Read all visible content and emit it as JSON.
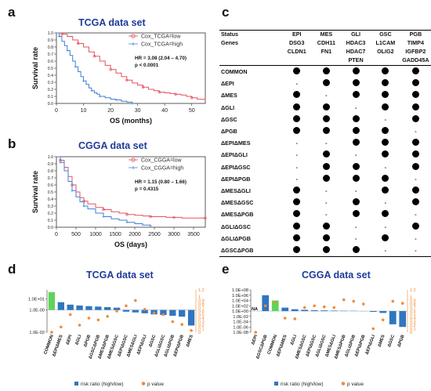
{
  "panels": {
    "a": {
      "letter": "a",
      "title": "TCGA data set"
    },
    "b": {
      "letter": "b",
      "title": "CGGA data set"
    },
    "c": {
      "letter": "c"
    },
    "d": {
      "letter": "d",
      "title": "TCGA data set"
    },
    "e": {
      "letter": "e",
      "title": "CGGA data set"
    }
  },
  "colors": {
    "low": "#e8505b",
    "high": "#3c7fd6",
    "bar": "#2f76c0",
    "common_bar": "#5fd35a",
    "pvalue": "#f08a3a",
    "title": "#1f3b99"
  },
  "km_a": {
    "ylabel": "Survival rate",
    "xlabel": "OS (months)",
    "legend_low": "Cox_TCGA=low",
    "legend_high": "Cox_TCGA=high",
    "hr_text": "HR = 3.08 (2.04 – 4.70)",
    "p_text": "p < 0.0001",
    "yticks": [
      "0.0",
      "0.1",
      "0.2",
      "0.3",
      "0.4",
      "0.5",
      "0.6",
      "0.7",
      "0.8",
      "0.9",
      "1.0"
    ],
    "xticks": [
      "0",
      "10",
      "20",
      "30",
      "40",
      "50"
    ]
  },
  "km_b": {
    "ylabel": "Survival rate",
    "xlabel": "OS (days)",
    "legend_low": "Cox_CGGA=low",
    "legend_high": "Cox_CGGA=high",
    "hr_text": "HR = 1.15 (0.80 – 1.66)",
    "p_text": "p = 0.4315",
    "yticks": [
      "0.0",
      "0.1",
      "0.2",
      "0.3",
      "0.4",
      "0.5",
      "0.6",
      "0.7",
      "0.8",
      "0.9",
      "1.0"
    ],
    "xticks": [
      "0",
      "500",
      "1000",
      "1500",
      "2000",
      "2500",
      "3000",
      "3500"
    ]
  },
  "chart_data": [
    {
      "type": "line",
      "panel": "a",
      "title": "TCGA data set",
      "xlabel": "OS (months)",
      "ylabel": "Survival rate",
      "xlim": [
        0,
        55
      ],
      "ylim": [
        0,
        1
      ],
      "series": [
        {
          "name": "Cox_TCGA=low",
          "x": [
            0,
            2,
            4,
            6,
            8,
            10,
            12,
            14,
            16,
            18,
            20,
            22,
            24,
            26,
            28,
            30,
            32,
            34,
            36,
            38,
            40,
            42,
            44,
            46,
            48,
            50,
            52,
            55
          ],
          "y": [
            1.0,
            0.98,
            0.95,
            0.9,
            0.85,
            0.8,
            0.73,
            0.67,
            0.6,
            0.54,
            0.48,
            0.43,
            0.38,
            0.33,
            0.29,
            0.26,
            0.23,
            0.2,
            0.18,
            0.16,
            0.15,
            0.14,
            0.13,
            0.12,
            0.1,
            0.08,
            0.06,
            0.05
          ]
        },
        {
          "name": "Cox_TCGA=high",
          "x": [
            0,
            1,
            2,
            3,
            4,
            5,
            6,
            7,
            8,
            9,
            10,
            11,
            12,
            13,
            14,
            15,
            16,
            18,
            20,
            22,
            24,
            26,
            28
          ],
          "y": [
            1.0,
            0.95,
            0.88,
            0.82,
            0.75,
            0.68,
            0.6,
            0.52,
            0.45,
            0.38,
            0.32,
            0.27,
            0.22,
            0.18,
            0.15,
            0.13,
            0.1,
            0.08,
            0.06,
            0.05,
            0.03,
            0.02,
            0.0
          ]
        }
      ],
      "annotations": [
        "HR = 3.08 (2.04 – 4.70)",
        "p < 0.0001"
      ]
    },
    {
      "type": "line",
      "panel": "b",
      "title": "CGGA data set",
      "xlabel": "OS (days)",
      "ylabel": "Survival rate",
      "xlim": [
        0,
        3800
      ],
      "ylim": [
        0,
        1
      ],
      "series": [
        {
          "name": "Cox_CGGA=low",
          "x": [
            0,
            100,
            200,
            300,
            400,
            500,
            600,
            700,
            800,
            1000,
            1200,
            1400,
            1600,
            1800,
            2000,
            2200,
            2400,
            2600,
            2800,
            3000,
            3200,
            3500,
            3800
          ],
          "y": [
            1.0,
            0.95,
            0.85,
            0.72,
            0.6,
            0.5,
            0.42,
            0.37,
            0.33,
            0.28,
            0.25,
            0.22,
            0.2,
            0.18,
            0.17,
            0.16,
            0.15,
            0.15,
            0.14,
            0.14,
            0.13,
            0.13,
            0.13
          ]
        },
        {
          "name": "Cox_CGGA=high",
          "x": [
            0,
            100,
            200,
            300,
            400,
            500,
            600,
            700,
            800,
            1000,
            1200,
            1400,
            1600,
            1800,
            2000,
            2200,
            2400
          ],
          "y": [
            1.0,
            0.92,
            0.8,
            0.65,
            0.52,
            0.43,
            0.36,
            0.3,
            0.26,
            0.2,
            0.15,
            0.12,
            0.1,
            0.07,
            0.05,
            0.03,
            0.02
          ]
        }
      ],
      "annotations": [
        "HR = 1.15 (0.80 – 1.66)",
        "p = 0.4315"
      ]
    },
    {
      "type": "bar",
      "panel": "d",
      "title": "TCGA data set",
      "categories": [
        "COMMON",
        "ΔEPIΔMES",
        "ΔEPI",
        "ΔGLI",
        "ΔPGB",
        "ΔGSCΔPGB",
        "ΔMESΔPGB",
        "ΔMESΔGSC",
        "ΔEPIΔGSC",
        "ΔMESΔGLI",
        "ΔEPIΔGLI",
        "ΔGSC",
        "ΔGLIΔGSC",
        "ΔGLIΔPGB",
        "ΔEPIΔPGB",
        "ΔMES"
      ],
      "y_axis_left_ticks": [
        "1.0E-02",
        "1.0E-00",
        "1.0E+01"
      ],
      "y_axis_right_ticks": [
        "0",
        "0.1",
        "0.2",
        "0.3",
        "0.4",
        "0.5",
        "0.6",
        "0.7",
        "0.8",
        "0.9",
        "1",
        "1.2"
      ],
      "series": [
        {
          "name": "risk ratio (high/low)",
          "values": [
            40,
            5,
            3,
            2.5,
            2.2,
            2,
            1.8,
            1.6,
            0.7,
            0.6,
            0.5,
            0.4,
            0.35,
            0.3,
            0.25,
            0.04
          ]
        },
        {
          "name": "p value",
          "values": [
            0.0,
            0.15,
            0.5,
            0.2,
            0.4,
            0.35,
            0.45,
            0.6,
            0.75,
            0.9,
            0.65,
            0.55,
            0.5,
            0.3,
            0.22,
            0.05
          ]
        }
      ],
      "legend": [
        "risk ratio (high/low)",
        "p value"
      ]
    },
    {
      "type": "bar",
      "panel": "e",
      "title": "CGGA data set",
      "categories": [
        "ΔEPI",
        "ΔGSCΔPGB",
        "COMMON",
        "ΔEPIΔMES",
        "ΔGLI",
        "ΔMESΔGSC",
        "ΔEPIΔGSC",
        "ΔGLIΔGSC",
        "ΔMESΔGLI",
        "ΔMESΔPGB",
        "ΔGLIΔPGB",
        "ΔEPIΔPGB",
        "ΔEPIΔGLI",
        "ΔMES",
        "ΔGSC",
        "ΔPGB"
      ],
      "y_axis_left_ticks": [
        "1.0E-08",
        "1.0E-06",
        "1.0E-04",
        "1.0E-02",
        "1.0E+00",
        "1.0E+02",
        "1.0E+04",
        "1.0E+06",
        "1.0E+08"
      ],
      "y_axis_right_ticks": [
        "0",
        "0.1",
        "0.2",
        "0.3",
        "0.4",
        "0.5",
        "0.6",
        "0.7",
        "0.8",
        "0.9",
        "1",
        "1.2"
      ],
      "series": [
        {
          "name": "risk ratio (high/low)",
          "values": [
            null,
            1000000,
            10000,
            20,
            5,
            3,
            2,
            1.8,
            1.5,
            1.3,
            1.2,
            0.9,
            0.5,
            0.2,
            1e-05,
            1e-06
          ]
        },
        {
          "name": "p value",
          "values": [
            0.0,
            0.75,
            0.85,
            0.4,
            0.38,
            0.7,
            0.75,
            0.72,
            0.7,
            0.92,
            0.88,
            0.8,
            0.1,
            0.35,
            0.88,
            0.82
          ]
        }
      ],
      "annotations": [
        "NA"
      ],
      "legend": [
        "risk ratio (high/low)",
        "p value"
      ]
    }
  ],
  "gene_table": {
    "columns": [
      "EPI",
      "MES",
      "GLI",
      "GSC",
      "PGB"
    ],
    "status_label": "Status",
    "genes_label": "Genes",
    "genes": [
      [
        "DSG3",
        "CDH11",
        "HDAC3",
        "L1CAM",
        "TIMP4"
      ],
      [
        "CLDN1",
        "FN1",
        "HDAC7",
        "OLIG2",
        "IGFBP2"
      ],
      [
        "",
        "",
        "PTEN",
        "",
        "GADD45A"
      ]
    ],
    "rows": [
      {
        "label": "COMMON",
        "cells": [
          1,
          1,
          1,
          1,
          1
        ]
      },
      {
        "label": "ΔEPI",
        "cells": [
          0,
          1,
          1,
          1,
          1
        ]
      },
      {
        "label": "ΔMES",
        "cells": [
          1,
          0,
          1,
          1,
          1
        ]
      },
      {
        "label": "ΔGLI",
        "cells": [
          1,
          1,
          0,
          1,
          1
        ]
      },
      {
        "label": "ΔGSC",
        "cells": [
          1,
          1,
          1,
          0,
          1
        ]
      },
      {
        "label": "ΔPGB",
        "cells": [
          1,
          1,
          1,
          1,
          0
        ]
      },
      {
        "label": "ΔEPIΔMES",
        "cells": [
          0,
          0,
          1,
          1,
          1
        ]
      },
      {
        "label": "ΔEPIΔGLI",
        "cells": [
          0,
          1,
          0,
          1,
          1
        ]
      },
      {
        "label": "ΔEPIΔGSC",
        "cells": [
          0,
          1,
          1,
          0,
          1
        ]
      },
      {
        "label": "ΔEPIΔPGB",
        "cells": [
          0,
          1,
          1,
          1,
          0
        ]
      },
      {
        "label": "ΔMESΔGLI",
        "cells": [
          1,
          0,
          0,
          1,
          1
        ]
      },
      {
        "label": "ΔMESΔGSC",
        "cells": [
          1,
          0,
          1,
          0,
          1
        ]
      },
      {
        "label": "ΔMESΔPGB",
        "cells": [
          1,
          0,
          1,
          1,
          0
        ]
      },
      {
        "label": "ΔGLIΔGSC",
        "cells": [
          1,
          1,
          0,
          0,
          1
        ]
      },
      {
        "label": "ΔGLIΔPGB",
        "cells": [
          1,
          1,
          0,
          1,
          0
        ]
      },
      {
        "label": "ΔGSCΔPGB",
        "cells": [
          1,
          1,
          1,
          0,
          0
        ]
      }
    ],
    "dash": "-"
  }
}
